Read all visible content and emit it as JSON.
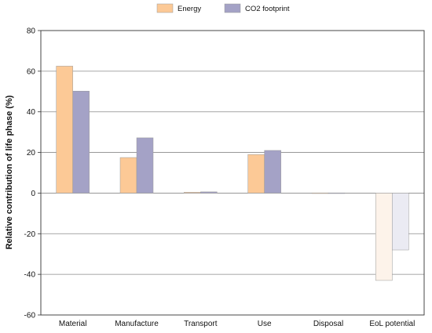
{
  "chart_data": {
    "type": "bar",
    "categories": [
      "Material",
      "Manufacture",
      "Transport",
      "Use",
      "Disposal",
      "EoL potential"
    ],
    "series": [
      {
        "name": "Energy",
        "values": [
          62.5,
          17.5,
          0.4,
          19,
          0.1,
          -43
        ],
        "color": "#fcc996",
        "negative_color": "#fdf3ea"
      },
      {
        "name": "CO2 footprint",
        "values": [
          50.2,
          27.2,
          0.6,
          21,
          0.1,
          -28
        ],
        "color": "#a4a2c6",
        "negative_color": "#ebebf3"
      }
    ],
    "ylabel": "Relative contribution of life phase (%)",
    "xlabel": "",
    "ylim": [
      -60,
      80
    ],
    "yticks": [
      -60,
      -40,
      -20,
      0,
      20,
      40,
      60,
      80
    ],
    "grid": true,
    "legend_position": "top-center"
  }
}
